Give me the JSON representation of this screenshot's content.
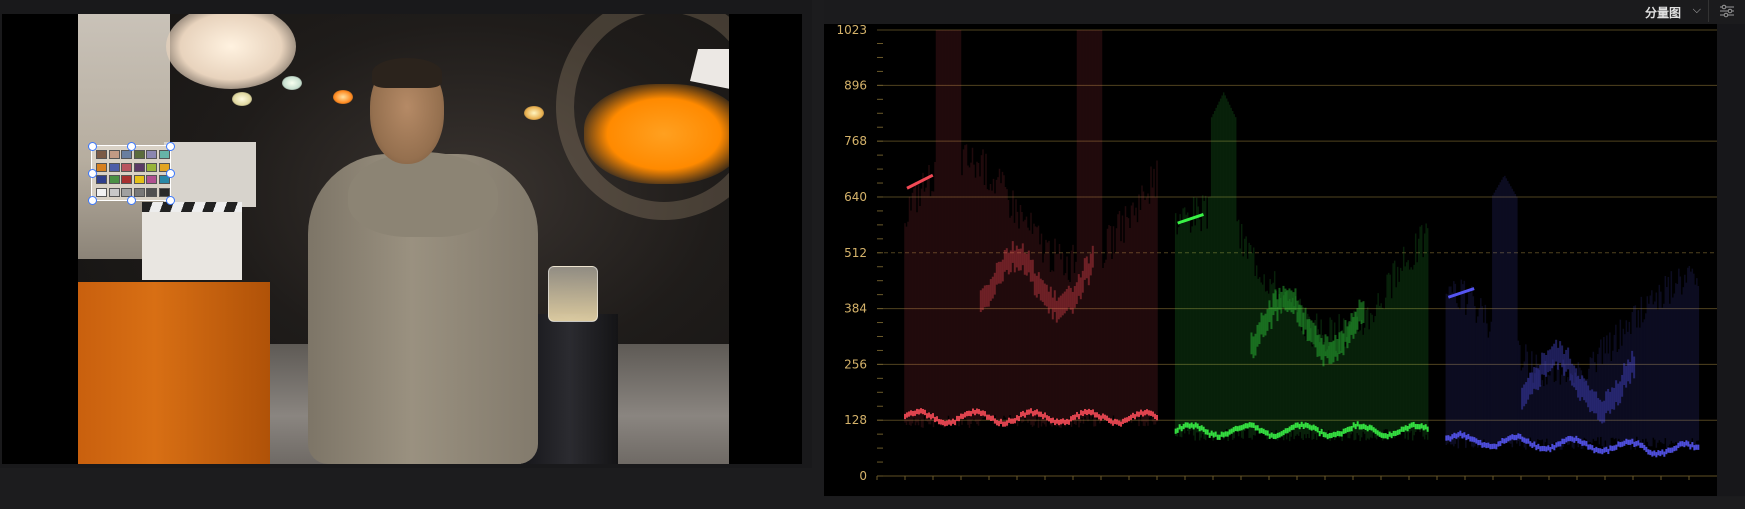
{
  "scope": {
    "title": "分量图",
    "chevron_icon": "chevron-down-icon",
    "settings_icon": "sliders-icon",
    "y_axis_labels": [
      "1023",
      "896",
      "768",
      "640",
      "512",
      "384",
      "256",
      "128",
      "0"
    ],
    "y_axis_values": [
      1023,
      896,
      768,
      640,
      512,
      384,
      256,
      128,
      0
    ],
    "y_range": [
      0,
      1023
    ],
    "channels": [
      "red",
      "green",
      "blue"
    ],
    "channel_colors": [
      "#ff4d5a",
      "#3cff4a",
      "#5a5aff"
    ],
    "grid_color": "#6b5a2a"
  },
  "viewer": {
    "selection_handles": 8
  }
}
